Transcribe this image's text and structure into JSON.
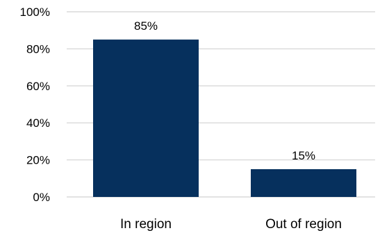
{
  "chart_data": {
    "type": "bar",
    "categories": [
      "In region",
      "Out of region"
    ],
    "values": [
      85,
      15
    ],
    "value_labels": [
      "85%",
      "15%"
    ],
    "title": "",
    "xlabel": "",
    "ylabel": "",
    "ylim": [
      0,
      100
    ],
    "y_ticks": [
      0,
      20,
      40,
      60,
      80,
      100
    ],
    "y_tick_labels": [
      "0%",
      "20%",
      "40%",
      "60%",
      "80%",
      "100%"
    ],
    "grid": true,
    "legend": "none",
    "bar_color": "#06305d"
  }
}
